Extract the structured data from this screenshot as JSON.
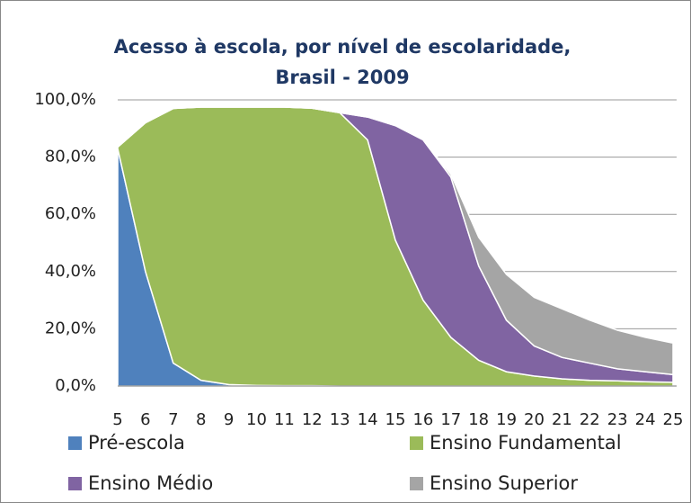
{
  "chart_data": {
    "type": "stacked_area",
    "title": "Acesso à escola, por nível de escolaridade, Brasil - 2009",
    "categories": [
      "5",
      "6",
      "7",
      "8",
      "9",
      "10",
      "11",
      "12",
      "13",
      "14",
      "15",
      "16",
      "17",
      "18",
      "19",
      "20",
      "21",
      "22",
      "23",
      "24",
      "25"
    ],
    "series": [
      {
        "name": "Pré-escola",
        "color": "#4f81bd",
        "values": [
          83,
          40,
          8,
          2,
          0.5,
          0.2,
          0.1,
          0.1,
          0,
          0,
          0,
          0,
          0,
          0,
          0,
          0,
          0,
          0,
          0,
          0,
          0
        ]
      },
      {
        "name": "Ensino Fundamental",
        "color": "#9bbb59",
        "values": [
          0.5,
          52,
          89,
          95.5,
          97,
          97.3,
          97.4,
          97,
          95.5,
          86,
          51,
          30,
          17,
          9,
          5,
          3.5,
          2.5,
          2,
          1.8,
          1.5,
          1.3
        ]
      },
      {
        "name": "Ensino Médio",
        "color": "#8064a2",
        "values": [
          0,
          0,
          0,
          0,
          0,
          0,
          0,
          0,
          0,
          8,
          40,
          56,
          56,
          33,
          18,
          10.5,
          7.5,
          6,
          4.2,
          3.5,
          2.7
        ]
      },
      {
        "name": "Ensino Superior",
        "color": "#a5a5a5",
        "values": [
          0,
          0,
          0,
          0,
          0,
          0,
          0,
          0,
          0,
          0,
          0,
          0,
          1,
          10,
          16,
          17,
          17,
          15,
          13.5,
          12,
          11
        ]
      }
    ],
    "ylim": [
      0,
      100
    ],
    "yticks": [
      {
        "value": 0,
        "label": "0,0%"
      },
      {
        "value": 20,
        "label": "20,0%"
      },
      {
        "value": 40,
        "label": "40,0%"
      },
      {
        "value": 60,
        "label": "60,0%"
      },
      {
        "value": 80,
        "label": "80,0%"
      },
      {
        "value": 100,
        "label": "100,0%"
      }
    ],
    "grid": true
  }
}
